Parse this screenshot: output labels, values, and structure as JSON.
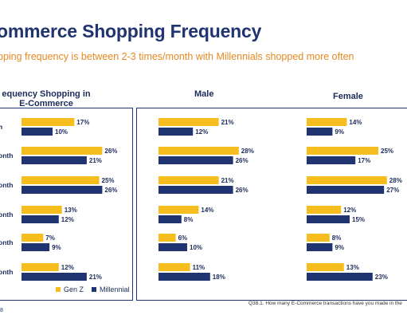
{
  "header": {
    "title": "ommerce Shopping Frequency",
    "subtitle": "pping frequency is between 2-3 times/month with Millennials shopped more often"
  },
  "panels": {
    "left_title_line1": "equency Shopping in",
    "left_title_line2": "E-Commerce",
    "male_title": "Male",
    "female_title": "Female"
  },
  "legend": {
    "genz_label": "Gen Z",
    "millennial_label": "Millennial"
  },
  "footnote": "Q38.1. How many E-Commerce transactions have you made in the",
  "corner_text": "8",
  "colors": {
    "genz": "#f6bd1f",
    "millennial": "#1f3470",
    "frame": "#1f3470"
  },
  "chart_data": [
    {
      "type": "bar",
      "orientation": "horizontal",
      "title": "equency Shopping in E-Commerce",
      "categories": [
        "h",
        "onth",
        "onth",
        "onth",
        "onth",
        "onth"
      ],
      "series": [
        {
          "name": "Gen Z",
          "values": [
            17,
            26,
            25,
            13,
            7,
            12
          ]
        },
        {
          "name": "Millennial",
          "values": [
            10,
            21,
            26,
            12,
            9,
            21
          ]
        }
      ],
      "value_suffix": "%"
    },
    {
      "type": "bar",
      "orientation": "horizontal",
      "title": "Male",
      "series": [
        {
          "name": "Gen Z",
          "values": [
            21,
            28,
            21,
            14,
            6,
            11
          ]
        },
        {
          "name": "Millennial",
          "values": [
            12,
            26,
            26,
            8,
            10,
            18
          ]
        }
      ],
      "value_suffix": "%"
    },
    {
      "type": "bar",
      "orientation": "horizontal",
      "title": "Female",
      "series": [
        {
          "name": "Gen Z",
          "values": [
            14,
            25,
            28,
            12,
            8,
            13
          ]
        },
        {
          "name": "Millennial",
          "values": [
            9,
            17,
            27,
            15,
            9,
            23
          ]
        }
      ],
      "value_suffix": "%"
    }
  ]
}
